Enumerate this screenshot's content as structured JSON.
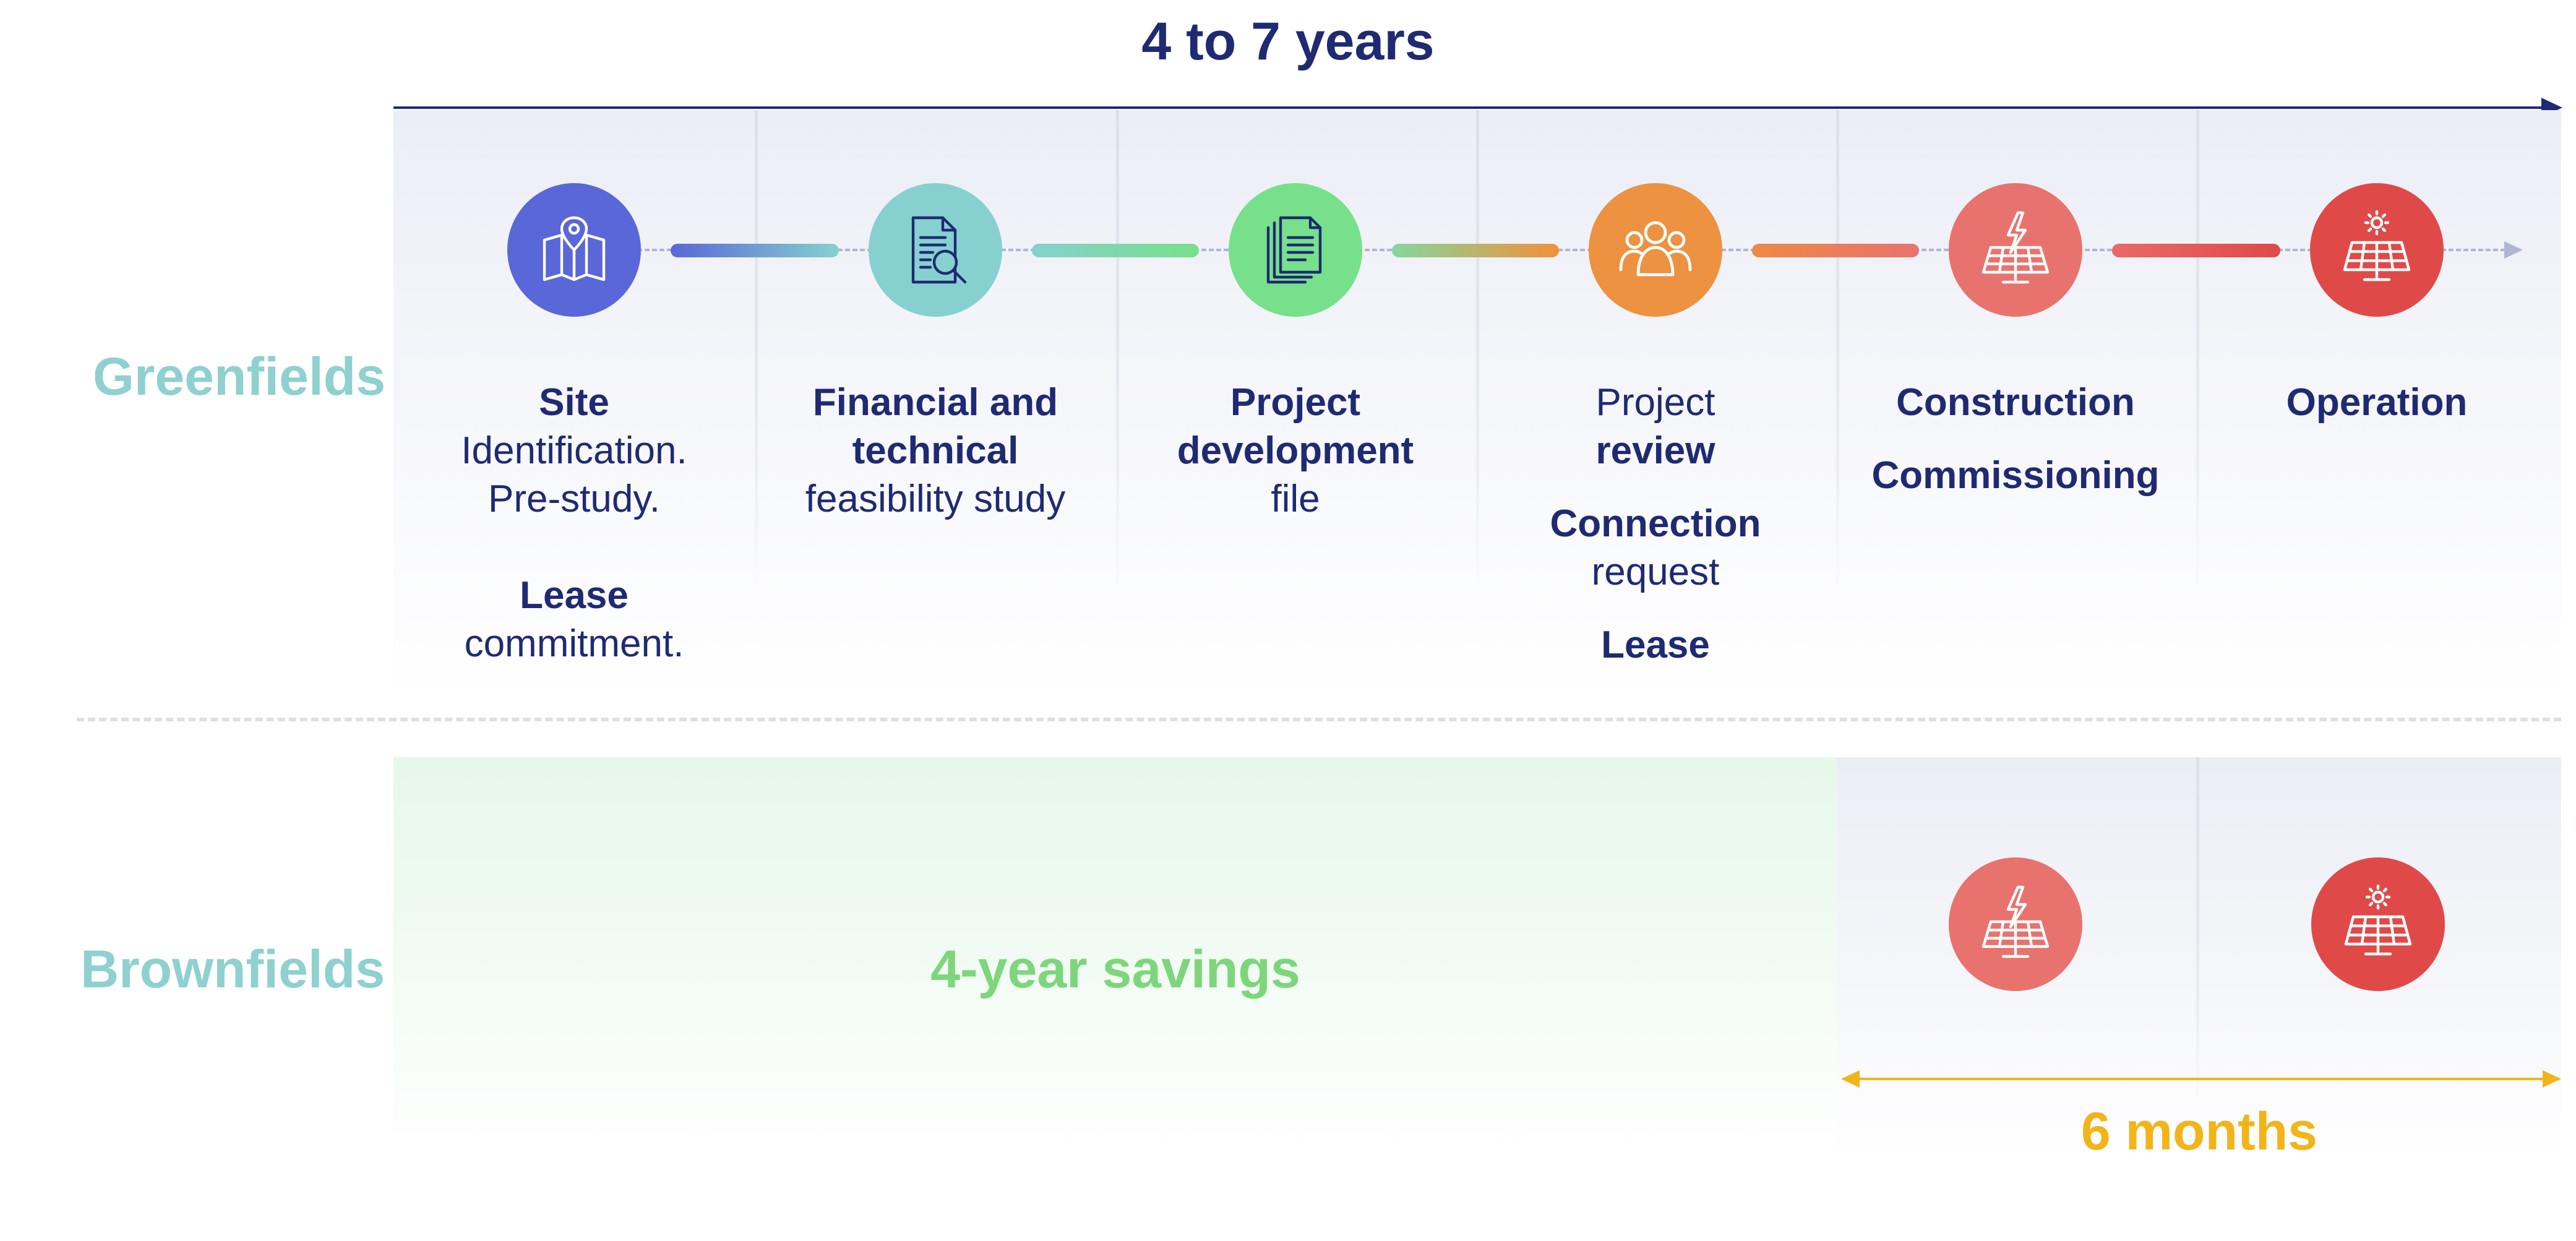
{
  "duration_label": "4 to 7 years",
  "rows": {
    "greenfields": "Greenfields",
    "brownfields": "Brownfields"
  },
  "stages": [
    {
      "icon": "map-pin-icon",
      "color": "#5a67d8",
      "lines": [
        {
          "text": "Site",
          "bold": true
        },
        {
          "text": "Identification.",
          "bold": false
        },
        {
          "text": "Pre-study.",
          "bold": false
        },
        {
          "gap": true
        },
        {
          "text": "Lease",
          "bold": true
        },
        {
          "text": "commitment.",
          "bold": false
        }
      ]
    },
    {
      "icon": "document-search-icon",
      "color": "#86d1cf",
      "lines": [
        {
          "text": "Financial and",
          "bold": true
        },
        {
          "text": "technical",
          "bold": true
        },
        {
          "text": "feasibility study",
          "bold": false
        }
      ]
    },
    {
      "icon": "documents-icon",
      "color": "#77e08a",
      "lines": [
        {
          "text": "Project",
          "bold": true
        },
        {
          "text": "development",
          "bold": true
        },
        {
          "text": "file",
          "bold": false
        }
      ]
    },
    {
      "icon": "people-icon",
      "color": "#ec9241",
      "lines": [
        {
          "text": "Project",
          "bold": false
        },
        {
          "text": "review",
          "bold": true
        },
        {
          "gap": "small"
        },
        {
          "text": "Connection",
          "bold": true
        },
        {
          "text": "request",
          "bold": false
        },
        {
          "gap": "small"
        },
        {
          "text": "Lease",
          "bold": true
        }
      ]
    },
    {
      "icon": "solar-panel-lightning-icon",
      "color": "#e8736e",
      "lines": [
        {
          "text": "Construction",
          "bold": true
        },
        {
          "gap": "small"
        },
        {
          "text": "Commissioning",
          "bold": true
        }
      ]
    },
    {
      "icon": "solar-panel-sun-icon",
      "color": "#df4a48",
      "lines": [
        {
          "text": "Operation",
          "bold": true
        }
      ]
    }
  ],
  "connector_gradients": [
    [
      "#5a67d8",
      "#86d1cf"
    ],
    [
      "#86d1cf",
      "#77e08a"
    ],
    [
      "#86d6a0",
      "#f0913a"
    ],
    [
      "#ec8a45",
      "#e8736e"
    ],
    [
      "#e86a66",
      "#df4a48"
    ]
  ],
  "savings_label": "4-year savings",
  "brownfield_icons": [
    {
      "icon": "solar-panel-lightning-icon",
      "color": "#e8736e"
    },
    {
      "icon": "solar-panel-sun-icon",
      "color": "#df4a48"
    }
  ],
  "months_label": "6 months"
}
